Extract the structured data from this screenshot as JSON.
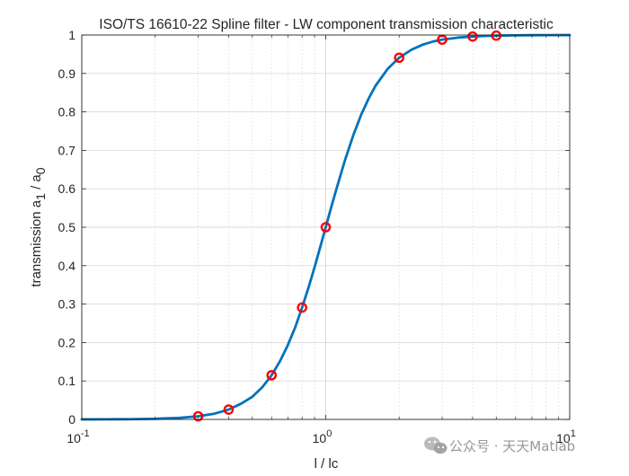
{
  "chart_data": {
    "type": "line",
    "title": "ISO/TS 16610-22 Spline filter - LW component transmission characteristic",
    "xlabel": "l / lc",
    "ylabel_main": "transmission a",
    "ylabel_sub1": "1",
    "ylabel_mid": " / a",
    "ylabel_sub2": "0",
    "x_scale": "log",
    "xlim": [
      0.1,
      10
    ],
    "ylim": [
      0,
      1
    ],
    "grid": true,
    "minor_grid_x": true,
    "x_ticks": [
      {
        "value": 0.1,
        "base": "10",
        "exp": "-1"
      },
      {
        "value": 1,
        "base": "10",
        "exp": "0"
      },
      {
        "value": 10,
        "base": "10",
        "exp": "1"
      }
    ],
    "y_ticks": [
      {
        "value": 0,
        "label": "0"
      },
      {
        "value": 0.1,
        "label": "0.1"
      },
      {
        "value": 0.2,
        "label": "0.2"
      },
      {
        "value": 0.3,
        "label": "0.3"
      },
      {
        "value": 0.4,
        "label": "0.4"
      },
      {
        "value": 0.5,
        "label": "0.5"
      },
      {
        "value": 0.6,
        "label": "0.6"
      },
      {
        "value": 0.7,
        "label": "0.7"
      },
      {
        "value": 0.8,
        "label": "0.8"
      },
      {
        "value": 0.9,
        "label": "0.9"
      },
      {
        "value": 1,
        "label": "1"
      }
    ],
    "series": [
      {
        "style": "line",
        "color": "#0072BD",
        "x": [
          0.1,
          0.126,
          0.158,
          0.2,
          0.251,
          0.3,
          0.35,
          0.4,
          0.45,
          0.5,
          0.55,
          0.6,
          0.65,
          0.7,
          0.75,
          0.8,
          0.85,
          0.9,
          0.95,
          1.0,
          1.05,
          1.1,
          1.2,
          1.3,
          1.4,
          1.5,
          1.6,
          1.8,
          2.0,
          2.25,
          2.5,
          2.75,
          3.0,
          3.5,
          4.0,
          4.5,
          5.0,
          6.0,
          7.0,
          8.0,
          10.0
        ],
        "y": [
          0.0001,
          0.0003,
          0.0006,
          0.0016,
          0.004,
          0.0081,
          0.015,
          0.0256,
          0.041,
          0.0588,
          0.084,
          0.115,
          0.152,
          0.194,
          0.24,
          0.291,
          0.343,
          0.396,
          0.449,
          0.5,
          0.549,
          0.594,
          0.675,
          0.741,
          0.794,
          0.835,
          0.868,
          0.913,
          0.941,
          0.962,
          0.975,
          0.983,
          0.988,
          0.9934,
          0.9961,
          0.9976,
          0.9984,
          0.9992,
          0.9996,
          0.9998,
          0.9999
        ]
      },
      {
        "style": "markers",
        "marker": "circle",
        "color": "#FF0000",
        "x": [
          0.3,
          0.4,
          0.6,
          0.8,
          1.0,
          2.0,
          3.0,
          4.0,
          5.0
        ],
        "y": [
          0.0081,
          0.0256,
          0.115,
          0.291,
          0.5,
          0.941,
          0.988,
          0.9961,
          0.9984
        ]
      }
    ]
  },
  "watermark": {
    "text": "公众号 · 天天Matlab",
    "icon": "wechat-icon"
  }
}
